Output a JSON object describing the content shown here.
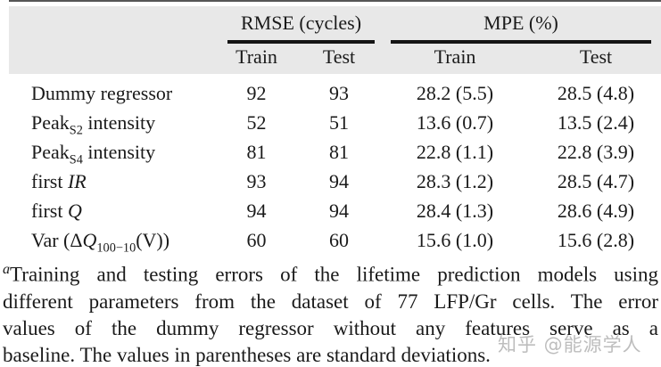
{
  "table": {
    "col_groups": [
      {
        "label": "RMSE (cycles)"
      },
      {
        "label": "MPE (%)"
      }
    ],
    "sub_headers": {
      "rmse_train": "Train",
      "rmse_test": "Test",
      "mpe_train": "Train",
      "mpe_test": "Test"
    },
    "rows": [
      {
        "label": {
          "pre": "Dummy regressor"
        },
        "rmse_train": "92",
        "rmse_test": "93",
        "mpe_train": "28.2 (5.5)",
        "mpe_test": "28.5 (4.8)"
      },
      {
        "label": {
          "pre": "Peak",
          "sub": "S2",
          "post": " intensity"
        },
        "rmse_train": "52",
        "rmse_test": "51",
        "mpe_train": "13.6 (0.7)",
        "mpe_test": "13.5 (2.4)"
      },
      {
        "label": {
          "pre": "Peak",
          "sub": "S4",
          "post": " intensity"
        },
        "rmse_train": "81",
        "rmse_test": "81",
        "mpe_train": "22.8 (1.1)",
        "mpe_test": "22.8 (3.9)"
      },
      {
        "label": {
          "pre": "first ",
          "it": "IR"
        },
        "rmse_train": "93",
        "rmse_test": "94",
        "mpe_train": "28.3 (1.2)",
        "mpe_test": "28.5 (4.7)"
      },
      {
        "label": {
          "pre": "first ",
          "it": "Q"
        },
        "rmse_train": "94",
        "rmse_test": "94",
        "mpe_train": "28.4 (1.3)",
        "mpe_test": "28.6 (4.9)"
      },
      {
        "label": {
          "pre": "Var (Δ",
          "it": "Q",
          "sub": "100−10",
          "post": "(V))"
        },
        "rmse_train": "60",
        "rmse_test": "60",
        "mpe_train": "15.6 (1.0)",
        "mpe_test": "15.6 (2.8)"
      }
    ]
  },
  "footnote": {
    "marker": "a",
    "lines": [
      "Training and testing errors of the lifetime prediction models using",
      "different parameters from the dataset of 77 LFP/Gr cells. The error",
      "values of the dummy regressor without any features serve as a",
      "baseline. The values in parentheses are standard deviations."
    ]
  },
  "watermark": {
    "text": "知乎 @能源学人"
  },
  "colors": {
    "header_band": "#e8e8e8",
    "rule": "#141414",
    "text": "#1a1a1a",
    "watermark": "#bdbdbd"
  }
}
